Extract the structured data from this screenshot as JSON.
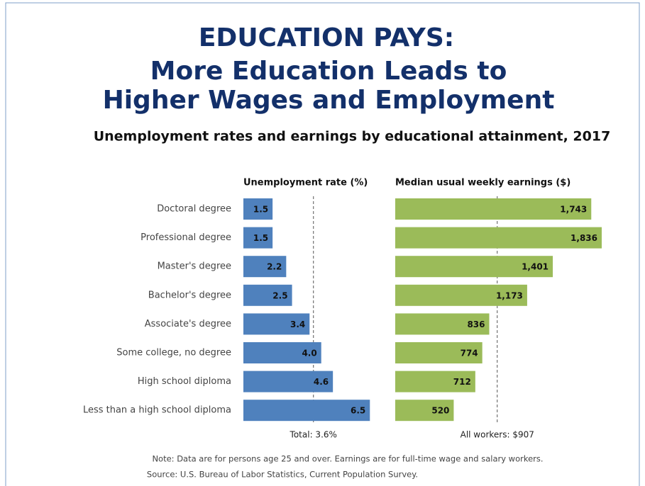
{
  "header": {
    "title": [
      "EDUCATION PAYS:",
      "More Education Leads to",
      "Higher Wages and Employment"
    ],
    "subtitle": "Unemployment rates and earnings by educational attainment, 2017"
  },
  "chart_data": [
    {
      "type": "bar",
      "orientation": "horizontal",
      "title": "Unemployment rate (%)",
      "categories": [
        "Doctoral degree",
        "Professional degree",
        "Master's degree",
        "Bachelor's degree",
        "Associate's degree",
        "Some college, no degree",
        "High school diploma",
        "Less than a high school diploma"
      ],
      "values": [
        1.5,
        1.5,
        2.2,
        2.5,
        3.4,
        4.0,
        4.6,
        6.5
      ],
      "value_labels": [
        "1.5",
        "1.5",
        "2.2",
        "2.5",
        "3.4",
        "4.0",
        "4.6",
        "6.5"
      ],
      "color": "#4f81bd",
      "xlim": [
        0,
        7
      ],
      "ref_line": {
        "value": 3.6,
        "label": "Total: 3.6%"
      }
    },
    {
      "type": "bar",
      "orientation": "horizontal",
      "title": "Median usual weekly earnings ($)",
      "values": [
        1743,
        1836,
        1401,
        1173,
        836,
        774,
        712,
        520
      ],
      "value_labels": [
        "1,743",
        "1,836",
        "1,401",
        "1,173",
        "836",
        "774",
        "712",
        "520"
      ],
      "color": "#9bbb59",
      "xlim": [
        0,
        2000
      ],
      "ref_line": {
        "value": 907,
        "label": "All workers: $907"
      }
    }
  ],
  "footer": {
    "note": "Note: Data are for persons age 25 and over. Earnings are for full-time wage and salary workers.",
    "source": "Source: U.S. Bureau of Labor Statistics, Current Population Survey."
  }
}
